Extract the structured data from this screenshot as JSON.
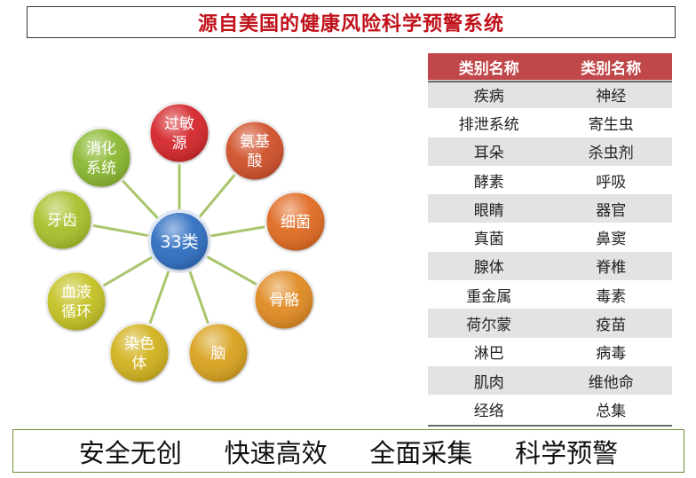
{
  "title": "源自美国的健康风险科学预警系统",
  "center": {
    "label": "33类",
    "color": "#2e6ec0"
  },
  "nodes": [
    {
      "label": [
        "过敏",
        "源"
      ],
      "color": "#d4262b"
    },
    {
      "label": [
        "氨基",
        "酸"
      ],
      "color": "#d0502a"
    },
    {
      "label": [
        "细菌"
      ],
      "color": "#e06a22"
    },
    {
      "label": [
        "骨骼"
      ],
      "color": "#e08a22"
    },
    {
      "label": [
        "脑"
      ],
      "color": "#d8a21e"
    },
    {
      "label": [
        "染色",
        "体"
      ],
      "color": "#d2b21e"
    },
    {
      "label": [
        "血液",
        "循环"
      ],
      "color": "#c4c224"
    },
    {
      "label": [
        "牙齿"
      ],
      "color": "#a8c02a"
    },
    {
      "label": [
        "消化",
        "系统"
      ],
      "color": "#8ab830"
    }
  ],
  "table": {
    "headers": [
      "类别名称",
      "类别名称"
    ],
    "rows": [
      [
        "疾病",
        "神经"
      ],
      [
        "排泄系统",
        "寄生虫"
      ],
      [
        "耳朵",
        "杀虫剂"
      ],
      [
        "酵素",
        "呼吸"
      ],
      [
        "眼睛",
        "器官"
      ],
      [
        "真菌",
        "鼻窦"
      ],
      [
        "腺体",
        "脊椎"
      ],
      [
        "重金属",
        "毒素"
      ],
      [
        "荷尔蒙",
        "疫苗"
      ],
      [
        "淋巴",
        "病毒"
      ],
      [
        "肌肉",
        "维他命"
      ],
      [
        "经络",
        "总集"
      ]
    ]
  },
  "slogans": [
    "安全无创",
    "快速高效",
    "全面采集",
    "科学预警"
  ]
}
